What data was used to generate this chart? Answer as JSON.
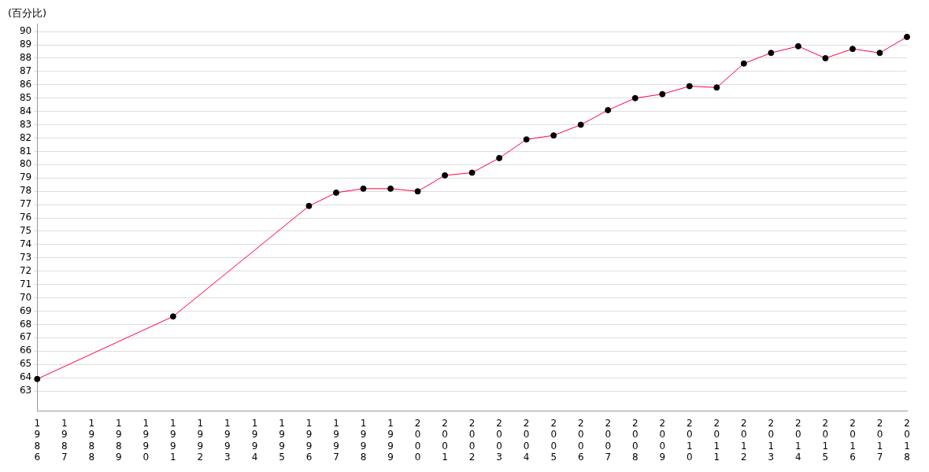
{
  "chart_data": {
    "type": "line",
    "ylabel": "(百分比)",
    "categories": [
      "1986",
      "1987",
      "1988",
      "1989",
      "1990",
      "1991",
      "1992",
      "1993",
      "1994",
      "1995",
      "1996",
      "1997",
      "1998",
      "1999",
      "2000",
      "2001",
      "2002",
      "2003",
      "2004",
      "2005",
      "2006",
      "2007",
      "2008",
      "2009",
      "2010",
      "2011",
      "2012",
      "2013",
      "2014",
      "2015",
      "2016",
      "2017",
      "2018"
    ],
    "series": [
      {
        "color": "#ff0040",
        "values": [
          63.9,
          null,
          null,
          null,
          null,
          68.6,
          null,
          null,
          null,
          null,
          76.9,
          77.9,
          78.2,
          78.2,
          78.0,
          79.2,
          79.4,
          80.5,
          81.9,
          82.2,
          83.0,
          84.1,
          85.0,
          85.3,
          85.9,
          85.8,
          87.6,
          88.4,
          88.9,
          88.0,
          88.7,
          88.4,
          89.6
        ]
      }
    ],
    "ylim": [
      61.5,
      90.6
    ],
    "yticks": [
      63,
      64,
      65,
      66,
      67,
      68,
      69,
      70,
      71,
      72,
      73,
      74,
      75,
      76,
      77,
      78,
      79,
      80,
      81,
      82,
      83,
      84,
      85,
      86,
      87,
      88,
      89,
      90
    ],
    "grid": "y",
    "legend": false,
    "marker": "circle"
  }
}
